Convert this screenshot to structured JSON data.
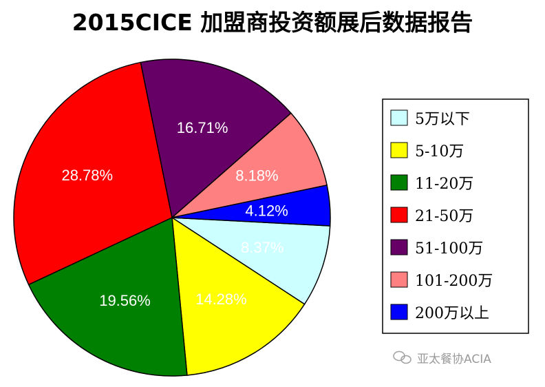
{
  "chart_data": {
    "type": "pie",
    "title": "2015CICE 加盟商投资额展后数据报告",
    "legend_position": "right",
    "slices": [
      {
        "label": "5万以下",
        "value": 8.37,
        "display": "8.37%",
        "color": "#ccffff"
      },
      {
        "label": "5-10万",
        "value": 14.28,
        "display": "14.28%",
        "color": "#ffff00"
      },
      {
        "label": "11-20万",
        "value": 19.56,
        "display": "19.56%",
        "color": "#008000"
      },
      {
        "label": "21-50万",
        "value": 28.78,
        "display": "28.78%",
        "color": "#ff0000"
      },
      {
        "label": "51-100万",
        "value": 16.71,
        "display": "16.71%",
        "color": "#660066"
      },
      {
        "label": "101-200万",
        "value": 8.18,
        "display": "8.18%",
        "color": "#ff8080"
      },
      {
        "label": "200万以上",
        "value": 4.12,
        "display": "4.12%",
        "color": "#0000ff"
      }
    ]
  },
  "watermark": {
    "text": "亚太餐协ACIA",
    "icon": "wechat-icon"
  }
}
